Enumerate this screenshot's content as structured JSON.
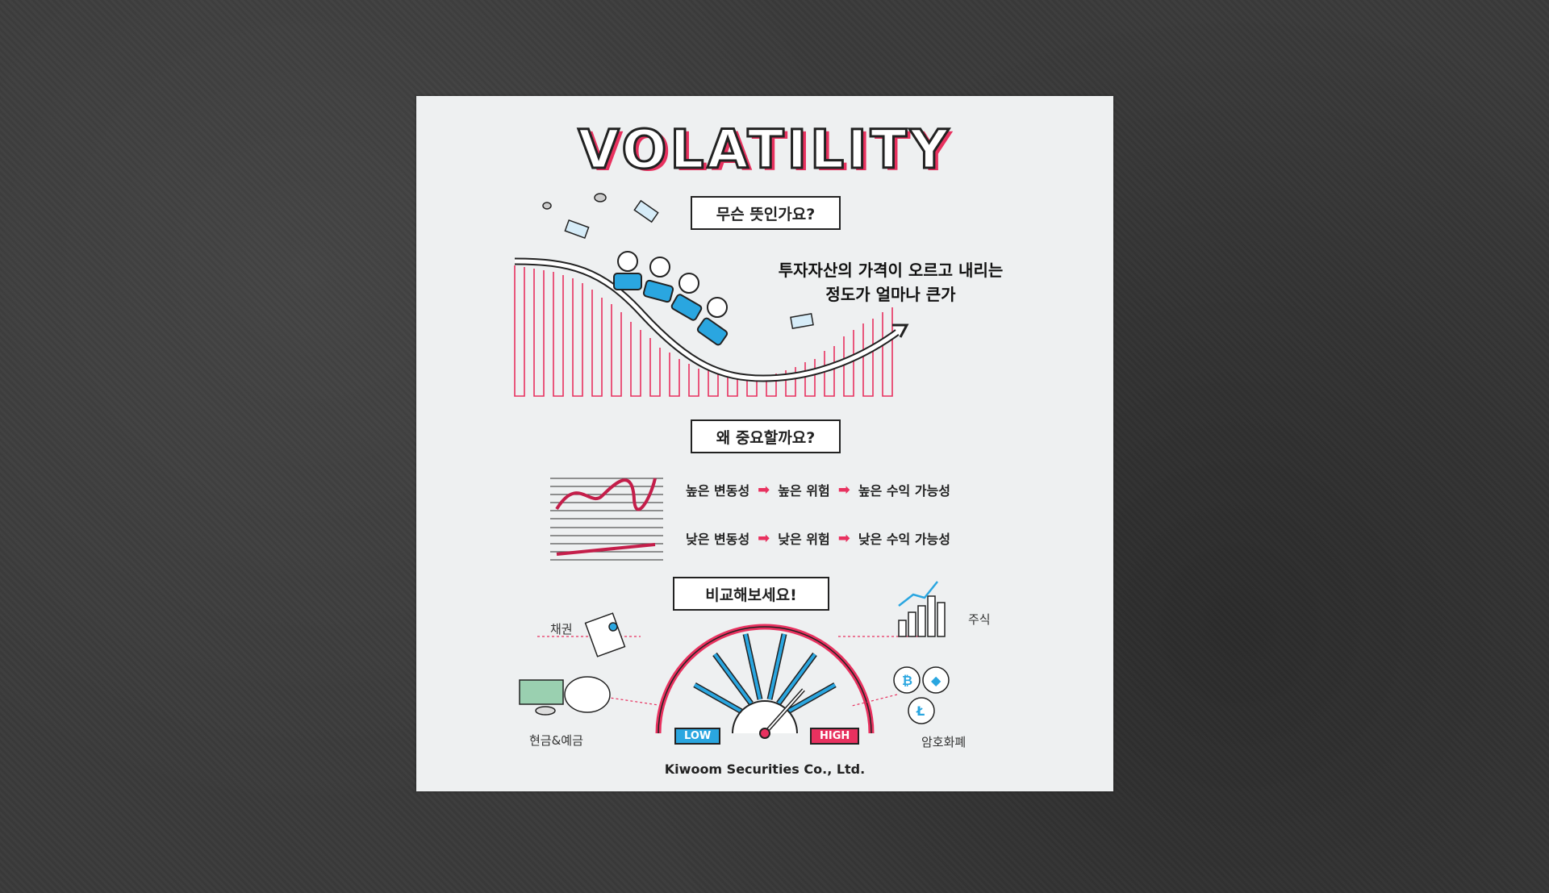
{
  "title": "VOLATILITY",
  "section1": {
    "banner": "무슨 뜻인가요?",
    "definition_line1": "투자자산의 가격이 오르고 내리는",
    "definition_line2": "정도가 얼마나 큰가"
  },
  "section2": {
    "banner": "왜 중요할까요?",
    "high_row": [
      "높은 변동성",
      "높은 위험",
      "높은 수익 가능성"
    ],
    "low_row": [
      "낮은 변동성",
      "낮은 위험",
      "낮은 수익 가능성"
    ]
  },
  "section3": {
    "banner": "비교해보세요!",
    "assets": {
      "bonds": "채권",
      "stocks": "주식",
      "cash": "현금&예금",
      "crypto": "암호화폐"
    },
    "gauge_low": "LOW",
    "gauge_high": "HIGH"
  },
  "footer": "Kiwoom Securities Co., Ltd.",
  "colors": {
    "accent": "#e8315f",
    "blue": "#2aa6e0",
    "ink": "#222222",
    "paper": "#eef0f1"
  }
}
